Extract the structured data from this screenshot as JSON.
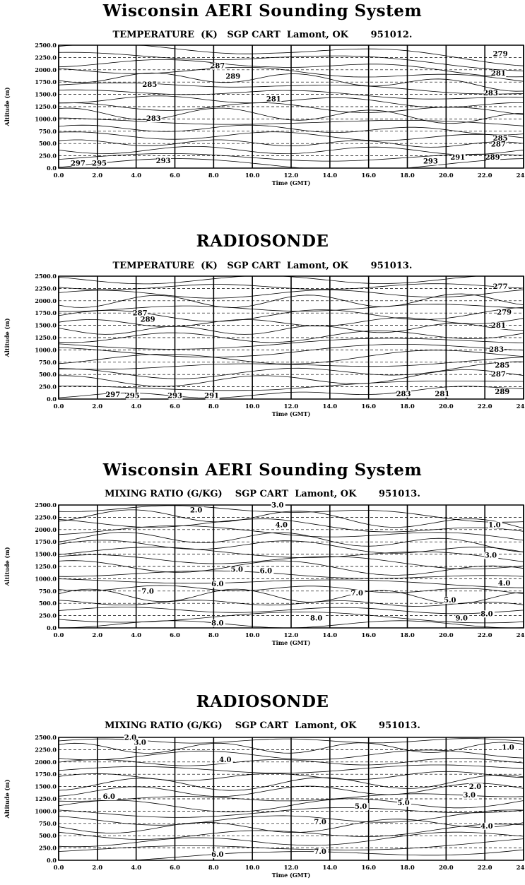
{
  "chart_data": [
    {
      "type": "contour",
      "title": "Wisconsin AERI Sounding System",
      "subtitle": "TEMPERATURE  (K)   SGP CART  Lamont, OK       951012.",
      "xlabel": "Time (GMT)",
      "ylabel": "Altitude (m)",
      "xlim": [
        0,
        24
      ],
      "ylim": [
        0,
        2500
      ],
      "x_ticks": [
        "0.0",
        "2.0",
        "4.0",
        "6.0",
        "8.0",
        "10.0",
        "12.0",
        "14.0",
        "16.0",
        "18.0",
        "20.0",
        "22.0",
        "24.0"
      ],
      "y_ticks": [
        "2500.0",
        "2250.0",
        "2000.0",
        "1750.0",
        "1500.0",
        "1250.0",
        "1000.0",
        "750.0",
        "500.0",
        "250.0",
        "0.0"
      ],
      "contour_labels": [
        {
          "text": "285",
          "x": 4.7,
          "y": 1650
        },
        {
          "text": "287",
          "x": 8.2,
          "y": 2030
        },
        {
          "text": "289",
          "x": 9.0,
          "y": 1820
        },
        {
          "text": "281",
          "x": 11.1,
          "y": 1360
        },
        {
          "text": "283",
          "x": 4.9,
          "y": 960
        },
        {
          "text": "293",
          "x": 5.4,
          "y": 100
        },
        {
          "text": "297",
          "x": 1.0,
          "y": 50
        },
        {
          "text": "295",
          "x": 2.1,
          "y": 50
        },
        {
          "text": "279",
          "x": 22.8,
          "y": 2280
        },
        {
          "text": "281",
          "x": 22.7,
          "y": 1880
        },
        {
          "text": "283",
          "x": 22.3,
          "y": 1480
        },
        {
          "text": "285",
          "x": 22.8,
          "y": 560
        },
        {
          "text": "287",
          "x": 22.7,
          "y": 440
        },
        {
          "text": "289",
          "x": 22.4,
          "y": 170
        },
        {
          "text": "291",
          "x": 20.6,
          "y": 170
        },
        {
          "text": "293",
          "x": 19.2,
          "y": 90
        }
      ]
    },
    {
      "type": "contour",
      "title": "RADIOSONDE",
      "subtitle": "TEMPERATURE  (K)   SGP CART  Lamont, OK       951013.",
      "xlabel": "Time (GMT)",
      "ylabel": "Altitude (m)",
      "xlim": [
        0,
        24
      ],
      "ylim": [
        0,
        2500
      ],
      "x_ticks": [
        "0.0",
        "2.0",
        "4.0",
        "6.0",
        "8.0",
        "10.0",
        "12.0",
        "14.0",
        "16.0",
        "18.0",
        "20.0",
        "22.0",
        "24.0"
      ],
      "y_ticks": [
        "2500.0",
        "2250.0",
        "2000.0",
        "1750.0",
        "1500.0",
        "1250.0",
        "1000.0",
        "750.0",
        "500.0",
        "250.0",
        "0.0"
      ],
      "contour_labels": [
        {
          "text": "287",
          "x": 4.2,
          "y": 1700
        },
        {
          "text": "289",
          "x": 4.6,
          "y": 1570
        },
        {
          "text": "297",
          "x": 2.8,
          "y": 40
        },
        {
          "text": "295",
          "x": 3.8,
          "y": 20
        },
        {
          "text": "293",
          "x": 6.0,
          "y": 20
        },
        {
          "text": "291",
          "x": 7.9,
          "y": 20
        },
        {
          "text": "283",
          "x": 17.8,
          "y": 60
        },
        {
          "text": "281",
          "x": 19.8,
          "y": 60
        },
        {
          "text": "277",
          "x": 22.8,
          "y": 2240
        },
        {
          "text": "279",
          "x": 23.0,
          "y": 1720
        },
        {
          "text": "281",
          "x": 22.7,
          "y": 1450
        },
        {
          "text": "283",
          "x": 22.6,
          "y": 960
        },
        {
          "text": "285",
          "x": 22.9,
          "y": 640
        },
        {
          "text": "287",
          "x": 22.7,
          "y": 460
        },
        {
          "text": "289",
          "x": 22.9,
          "y": 100
        }
      ]
    },
    {
      "type": "contour",
      "title": "Wisconsin AERI Sounding System",
      "subtitle": "MIXING RATIO (G/KG)    SGP CART  Lamont, OK       951013.",
      "xlabel": "Time (GMT)",
      "ylabel": "Altitude (m)",
      "xlim": [
        0,
        24
      ],
      "ylim": [
        0,
        2500
      ],
      "x_ticks": [
        "0.0",
        "2.0",
        "4.0",
        "6.0",
        "8.0",
        "10.0",
        "12.0",
        "14.0",
        "16.0",
        "18.0",
        "20.0",
        "22.0",
        "24.0"
      ],
      "y_ticks": [
        "2500.0",
        "2250.0",
        "2000.0",
        "1750.0",
        "1500.0",
        "1250.0",
        "1000.0",
        "750.0",
        "500.0",
        "250.0",
        "0.0"
      ],
      "contour_labels": [
        {
          "text": "2.0",
          "x": 7.1,
          "y": 2350
        },
        {
          "text": "3.0",
          "x": 11.3,
          "y": 2450
        },
        {
          "text": "4.0",
          "x": 11.5,
          "y": 2050
        },
        {
          "text": "5.0",
          "x": 9.2,
          "y": 1140
        },
        {
          "text": "6.0",
          "x": 10.7,
          "y": 1110
        },
        {
          "text": "6.0",
          "x": 8.2,
          "y": 850
        },
        {
          "text": "7.0",
          "x": 4.6,
          "y": 700
        },
        {
          "text": "8.0",
          "x": 8.2,
          "y": 50
        },
        {
          "text": "8.0",
          "x": 13.3,
          "y": 150
        },
        {
          "text": "7.0",
          "x": 15.4,
          "y": 660
        },
        {
          "text": "3.0",
          "x": 22.3,
          "y": 1430
        },
        {
          "text": "4.0",
          "x": 23.0,
          "y": 860
        },
        {
          "text": "5.0",
          "x": 20.2,
          "y": 520
        },
        {
          "text": "9.0",
          "x": 20.8,
          "y": 150
        },
        {
          "text": "8.0",
          "x": 22.1,
          "y": 240
        },
        {
          "text": "1.0",
          "x": 22.5,
          "y": 2050
        }
      ]
    },
    {
      "type": "contour",
      "title": "RADIOSONDE",
      "subtitle": "MIXING RATIO (G/KG)    SGP CART  Lamont, OK       951013.",
      "xlabel": "Time (GMT)",
      "ylabel": "Altitude (m)",
      "xlim": [
        0,
        24
      ],
      "ylim": [
        0,
        2500
      ],
      "x_ticks": [
        "0.0",
        "2.0",
        "4.0",
        "6.0",
        "8.0",
        "10.0",
        "12.0",
        "14.0",
        "16.0",
        "18.0",
        "20.0",
        "22.0",
        "24.0"
      ],
      "y_ticks": [
        "2500.0",
        "2250.0",
        "2000.0",
        "1750.0",
        "1500.0",
        "1250.0",
        "1000.0",
        "750.0",
        "500.0",
        "250.0",
        "0.0"
      ],
      "contour_labels": [
        {
          "text": "2.0",
          "x": 3.7,
          "y": 2450
        },
        {
          "text": "3.0",
          "x": 4.2,
          "y": 2350
        },
        {
          "text": "4.0",
          "x": 8.6,
          "y": 2000
        },
        {
          "text": "6.0",
          "x": 2.6,
          "y": 1250
        },
        {
          "text": "5.0",
          "x": 15.6,
          "y": 1050
        },
        {
          "text": "5.0",
          "x": 17.8,
          "y": 1120
        },
        {
          "text": "7.0",
          "x": 13.5,
          "y": 730
        },
        {
          "text": "6.0",
          "x": 8.2,
          "y": 70
        },
        {
          "text": "7.0",
          "x": 13.5,
          "y": 130
        },
        {
          "text": "1.0",
          "x": 23.2,
          "y": 2250
        },
        {
          "text": "2.0",
          "x": 21.5,
          "y": 1450
        },
        {
          "text": "3.0",
          "x": 21.2,
          "y": 1280
        },
        {
          "text": "4.0",
          "x": 22.1,
          "y": 650
        }
      ]
    }
  ]
}
